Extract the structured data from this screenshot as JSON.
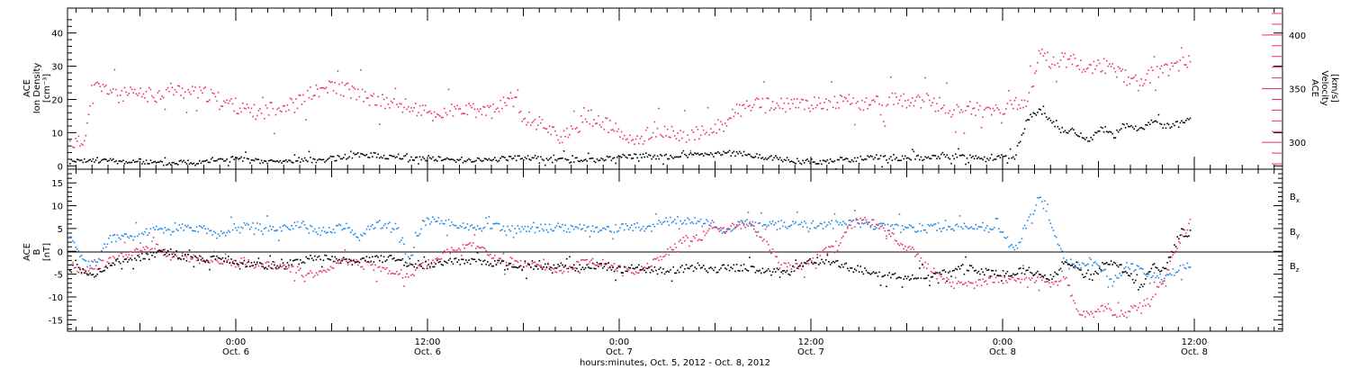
{
  "colors": {
    "black": "#000000",
    "pink": "#ee3366",
    "blue": "#1f88e5"
  },
  "chart_data": [
    {
      "type": "scatter",
      "panel": "top",
      "ylabel_left": [
        "ACE",
        "Ion Density",
        "[cm⁻³]"
      ],
      "ylabel_right": [
        "ACE",
        "Velocity",
        "[km/s]"
      ],
      "yticks_left": [
        0,
        10,
        20,
        30,
        40
      ],
      "ylim_left": [
        -1,
        47.5
      ],
      "yticks_right": [
        300,
        350,
        400
      ],
      "ylim_right": [
        275,
        425
      ],
      "series": [
        {
          "axis": "left",
          "color": "black",
          "x": [
            0,
            1,
            2,
            3,
            4,
            5,
            6,
            7,
            8,
            9,
            10,
            11,
            12,
            13,
            14,
            15,
            16,
            17,
            18,
            19,
            20,
            21,
            22,
            23,
            24,
            25,
            26,
            27,
            28,
            29,
            30,
            31,
            32,
            33,
            34,
            35,
            36,
            37,
            38,
            39,
            40,
            41,
            42,
            43,
            44,
            45,
            46,
            47,
            48,
            49,
            50,
            51,
            52,
            53,
            54,
            55,
            56,
            57,
            58,
            59,
            60,
            61,
            62,
            63,
            64,
            65,
            66,
            67,
            68,
            69,
            70,
            71,
            72,
            73,
            74,
            75,
            76,
            77,
            78,
            79,
            80,
            81,
            82,
            83,
            84,
            85,
            86,
            87,
            88,
            89
          ],
          "values": [
            1.5,
            1.5,
            2,
            1.8,
            1.5,
            1.5,
            1.5,
            1,
            1,
            1.5,
            1.5,
            2,
            2,
            2.5,
            2,
            1.5,
            1.5,
            1.5,
            2,
            2,
            2,
            2.5,
            3,
            3.5,
            3.5,
            3,
            3,
            2.5,
            2.5,
            2.5,
            2,
            2,
            2,
            2,
            2.5,
            2.5,
            2.5,
            2.5,
            2,
            2,
            2,
            2,
            2,
            2.5,
            3,
            3,
            3,
            3,
            3,
            3.5,
            3.5,
            3.5,
            4,
            4,
            3.5,
            3,
            2.5,
            2,
            1.5,
            1.5,
            1.5,
            2,
            2,
            2.5,
            3,
            2.5,
            2.5,
            2.5,
            2.5,
            3,
            3,
            3,
            3,
            2.5,
            2.5,
            2.5,
            14,
            17,
            13,
            11,
            10,
            8,
            12,
            9,
            13,
            11,
            14,
            12,
            13,
            14
          ]
        },
        {
          "axis": "right",
          "color": "pink",
          "x": [
            0,
            1,
            2,
            3,
            4,
            5,
            6,
            7,
            8,
            9,
            10,
            11,
            12,
            13,
            14,
            15,
            16,
            17,
            18,
            19,
            20,
            21,
            22,
            23,
            24,
            25,
            26,
            27,
            28,
            29,
            30,
            31,
            32,
            33,
            34,
            35,
            36,
            37,
            38,
            39,
            40,
            41,
            42,
            43,
            44,
            45,
            46,
            47,
            48,
            49,
            50,
            51,
            52,
            53,
            54,
            55,
            56,
            57,
            58,
            59,
            60,
            61,
            62,
            63,
            64,
            65,
            66,
            67,
            68,
            69,
            70,
            71,
            72,
            73,
            74,
            75,
            76,
            77,
            78,
            79,
            80,
            81,
            82,
            83,
            84,
            85,
            86,
            87,
            88,
            89
          ],
          "values": [
            300,
            300,
            352,
            350,
            345,
            345,
            345,
            345,
            350,
            348,
            346,
            345,
            340,
            336,
            330,
            328,
            332,
            335,
            335,
            345,
            350,
            352,
            350,
            345,
            340,
            338,
            336,
            333,
            330,
            325,
            330,
            330,
            330,
            330,
            330,
            345,
            325,
            320,
            315,
            305,
            310,
            325,
            320,
            315,
            305,
            300,
            310,
            310,
            308,
            308,
            308,
            312,
            320,
            330,
            335,
            335,
            335,
            335,
            336,
            336,
            338,
            338,
            338,
            335,
            338,
            340,
            340,
            338,
            338,
            336,
            330,
            332,
            332,
            330,
            328,
            335,
            340,
            383,
            375,
            378,
            375,
            370,
            373,
            368,
            360,
            355,
            365,
            368,
            374,
            378
          ]
        }
      ]
    },
    {
      "type": "scatter",
      "panel": "bottom",
      "ylabel_left": [
        "ACE",
        "B",
        "[nT]"
      ],
      "yticks_left": [
        -15,
        -10,
        -5,
        0,
        5,
        10,
        15
      ],
      "ylim_left": [
        -17.5,
        18
      ],
      "zero_line": true,
      "legend": [
        "Bx",
        "By",
        "Bz"
      ],
      "legend_placement": "right",
      "series": [
        {
          "name": "Bx",
          "color": "black",
          "x": [
            0,
            1,
            2,
            3,
            4,
            5,
            6,
            7,
            8,
            9,
            10,
            11,
            12,
            13,
            14,
            15,
            16,
            17,
            18,
            19,
            20,
            21,
            22,
            23,
            24,
            25,
            26,
            27,
            28,
            29,
            30,
            31,
            32,
            33,
            34,
            35,
            36,
            37,
            38,
            39,
            40,
            41,
            42,
            43,
            44,
            45,
            46,
            47,
            48,
            49,
            50,
            51,
            52,
            53,
            54,
            55,
            56,
            57,
            58,
            59,
            60,
            61,
            62,
            63,
            64,
            65,
            66,
            67,
            68,
            69,
            70,
            71,
            72,
            73,
            74,
            75,
            76,
            77,
            78,
            79,
            80,
            81,
            82,
            83,
            84,
            85,
            86,
            87,
            88,
            89
          ],
          "values": [
            -1.5,
            -4,
            -5,
            -3,
            -2,
            -1.5,
            -1,
            -0.5,
            0,
            -1,
            -1.5,
            -1.5,
            -1,
            -2,
            -2.5,
            -3,
            -3.5,
            -3,
            -2,
            -1.5,
            -1.5,
            -1.5,
            -2,
            -2,
            -1.5,
            -1.5,
            -1.5,
            -3,
            -3,
            -2.5,
            -2,
            -2,
            -2,
            -2.5,
            -2.5,
            -3,
            -3.5,
            -3,
            -3,
            -3,
            -3.5,
            -3.5,
            -3,
            -3.5,
            -4,
            -3.5,
            -4,
            -4,
            -4,
            -3.5,
            -3.5,
            -4,
            -3.5,
            -3.5,
            -3.5,
            -4,
            -4.5,
            -4.5,
            -3,
            -2,
            -2,
            -2.5,
            -3.5,
            -4,
            -4.5,
            -5,
            -5.5,
            -5.5,
            -5,
            -5,
            -4,
            -3.5,
            -4,
            -4.5,
            -4.5,
            -4.5,
            -4,
            -5,
            -6,
            -2,
            -3,
            -6,
            -3,
            -2,
            -5,
            -8,
            -3,
            -4,
            3,
            4
          ]
        },
        {
          "name": "By",
          "color": "blue",
          "x": [
            0,
            1,
            2,
            3,
            4,
            5,
            6,
            7,
            8,
            9,
            10,
            11,
            12,
            13,
            14,
            15,
            16,
            17,
            18,
            19,
            20,
            21,
            22,
            23,
            24,
            25,
            26,
            27,
            28,
            29,
            30,
            31,
            32,
            33,
            34,
            35,
            36,
            37,
            38,
            39,
            40,
            41,
            42,
            43,
            44,
            45,
            46,
            47,
            48,
            49,
            50,
            51,
            52,
            53,
            54,
            55,
            56,
            57,
            58,
            59,
            60,
            61,
            62,
            63,
            64,
            65,
            66,
            67,
            68,
            69,
            70,
            71,
            72,
            73,
            74,
            75,
            76,
            77,
            78,
            79,
            80,
            81,
            82,
            83,
            84,
            85,
            86,
            87,
            88,
            89
          ],
          "values": [
            3,
            -2,
            -3,
            2.5,
            3.5,
            3.5,
            4.5,
            5,
            5,
            5.5,
            5,
            5,
            3,
            5.5,
            5.5,
            5.5,
            5,
            5.5,
            6,
            5,
            4.5,
            5,
            5.5,
            3,
            6,
            6,
            5.5,
            -2,
            6.5,
            7,
            6.5,
            6,
            5,
            5.5,
            5.5,
            5,
            5,
            5,
            5.5,
            5.5,
            5,
            5.5,
            5,
            5,
            5.5,
            5.5,
            5,
            6.5,
            7,
            7,
            6.5,
            6,
            4,
            6,
            6.5,
            6.5,
            6,
            6,
            6,
            6,
            6,
            6,
            6.5,
            6,
            5.5,
            5.5,
            5.5,
            5,
            5,
            5.5,
            5,
            5.5,
            5.5,
            5,
            4.5,
            0,
            6,
            12,
            5,
            -2,
            -3,
            -2,
            -4,
            -6,
            -3,
            -4,
            -5,
            -6,
            -4,
            -3
          ]
        },
        {
          "name": "Bz",
          "color": "pink",
          "x": [
            0,
            1,
            2,
            3,
            4,
            5,
            6,
            7,
            8,
            9,
            10,
            11,
            12,
            13,
            14,
            15,
            16,
            17,
            18,
            19,
            20,
            21,
            22,
            23,
            24,
            25,
            26,
            27,
            28,
            29,
            30,
            31,
            32,
            33,
            34,
            35,
            36,
            37,
            38,
            39,
            40,
            41,
            42,
            43,
            44,
            45,
            46,
            47,
            48,
            49,
            50,
            51,
            52,
            53,
            54,
            55,
            56,
            57,
            58,
            59,
            60,
            61,
            62,
            63,
            64,
            65,
            66,
            67,
            68,
            69,
            70,
            71,
            72,
            73,
            74,
            75,
            76,
            77,
            78,
            79,
            80,
            81,
            82,
            83,
            84,
            85,
            86,
            87,
            88,
            89
          ],
          "values": [
            -3,
            -4,
            -3.5,
            -2,
            -1,
            0,
            0.5,
            1,
            -1,
            -1,
            -1.5,
            -2,
            -2,
            -2.5,
            -2,
            -3,
            -3,
            -3.5,
            -4,
            -5,
            -5,
            -3,
            -2,
            -2.5,
            -3,
            -4,
            -5,
            -5,
            -3,
            -2,
            0,
            1,
            2,
            0,
            -2,
            -2,
            -3,
            -3,
            -4,
            -4,
            -3,
            -2,
            -2,
            -3,
            -4,
            -4,
            -3,
            -1,
            1,
            3,
            3,
            5,
            5,
            6,
            6,
            3,
            -1,
            -3,
            -3,
            -2,
            0,
            2,
            6,
            7,
            6,
            4,
            2,
            0,
            -3,
            -5,
            -7,
            -7.5,
            -7,
            -6,
            -6,
            -6,
            -5.5,
            -6,
            -7,
            -5,
            -13,
            -14,
            -12,
            -14,
            -13,
            -12,
            -10,
            -5,
            2,
            6
          ]
        }
      ]
    }
  ],
  "xaxis": {
    "ticks": [
      {
        "time": "0:00",
        "date": "Oct. 6"
      },
      {
        "time": "12:00",
        "date": "Oct. 6"
      },
      {
        "time": "0:00",
        "date": "Oct. 7"
      },
      {
        "time": "12:00",
        "date": "Oct. 7"
      },
      {
        "time": "0:00",
        "date": "Oct. 8"
      },
      {
        "time": "12:00",
        "date": "Oct. 8"
      }
    ],
    "label": "hours:minutes, Oct.  5, 2012 - Oct.  8, 2012"
  }
}
